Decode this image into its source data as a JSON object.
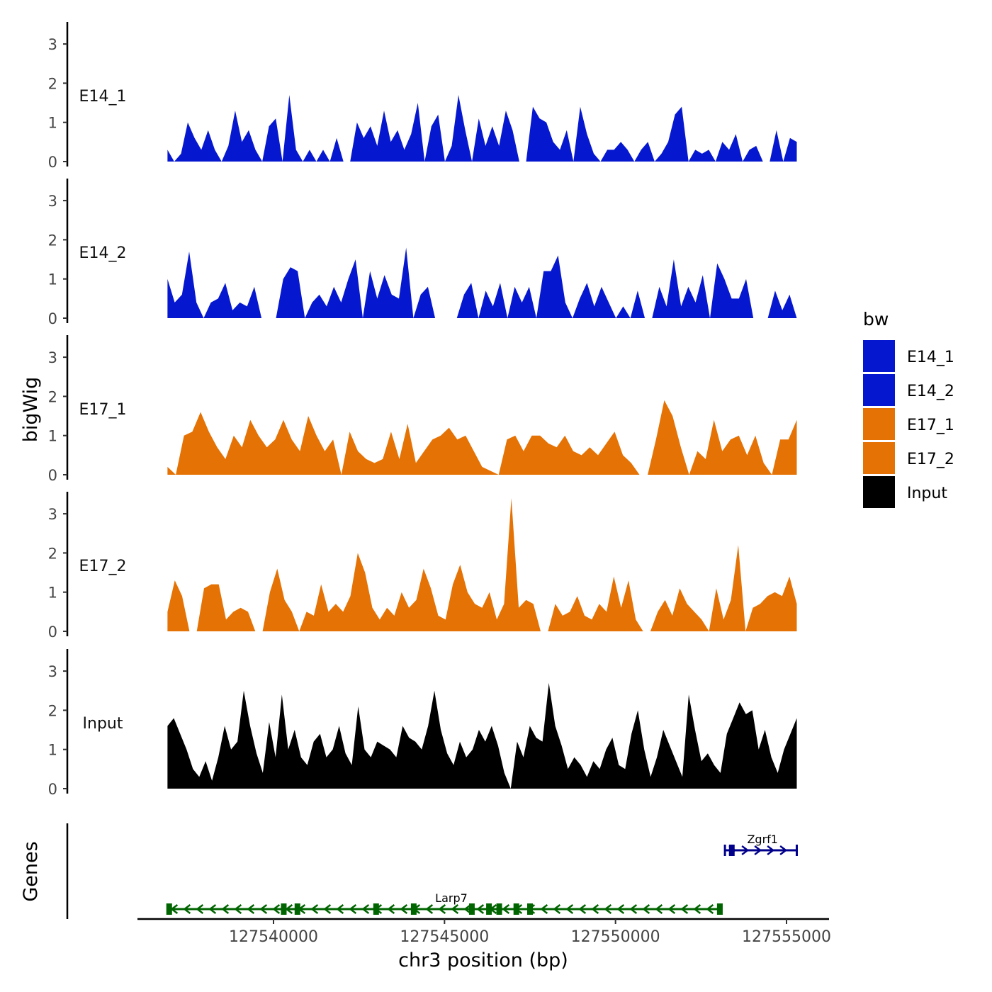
{
  "chart_data": {
    "type": "area",
    "ylabel": "bigWig",
    "genes_label": "Genes",
    "xlabel": "chr3 position (bp)",
    "xlim": [
      127535500,
      127555500
    ],
    "x_ticks": [
      127540000,
      127545000,
      127550000,
      127555000
    ],
    "x_tick_labels": [
      "127540000",
      "127545000",
      "127550000",
      "127555000"
    ],
    "ylim": [
      0,
      3.5
    ],
    "y_ticks": [
      0,
      1,
      2,
      3
    ],
    "y_tick_labels": [
      "0",
      "1",
      "2",
      "3"
    ],
    "track_x_range": [
      127536900,
      127555300
    ],
    "legend": {
      "title": "bw",
      "entries": [
        {
          "label": "E14_1",
          "color": "#0618CF"
        },
        {
          "label": "E14_2",
          "color": "#0618CF"
        },
        {
          "label": "E17_1",
          "color": "#E57204"
        },
        {
          "label": "E17_2",
          "color": "#E57204"
        },
        {
          "label": "Input",
          "color": "#000000"
        }
      ]
    },
    "series": [
      {
        "name": "E14_1",
        "color": "#0618CF",
        "values": [
          0.3,
          0.0,
          0.2,
          1.0,
          0.6,
          0.3,
          0.8,
          0.3,
          0.0,
          0.4,
          1.3,
          0.5,
          0.8,
          0.3,
          0.0,
          0.9,
          1.1,
          0.0,
          1.7,
          0.3,
          0.0,
          0.3,
          0.0,
          0.3,
          0.0,
          0.6,
          0.0,
          0.0,
          1.0,
          0.6,
          0.9,
          0.4,
          1.3,
          0.5,
          0.8,
          0.3,
          0.7,
          1.5,
          0.0,
          0.9,
          1.2,
          0.0,
          0.4,
          1.7,
          0.8,
          0.0,
          1.1,
          0.4,
          0.9,
          0.4,
          1.3,
          0.8,
          0.0,
          0.0,
          1.4,
          1.1,
          1.0,
          0.5,
          0.3,
          0.8,
          0.0,
          1.4,
          0.7,
          0.2,
          0.0,
          0.3,
          0.3,
          0.5,
          0.3,
          0.0,
          0.3,
          0.5,
          0.0,
          0.2,
          0.5,
          1.2,
          1.4,
          0.0,
          0.3,
          0.2,
          0.3,
          0.0,
          0.5,
          0.3,
          0.7,
          0.0,
          0.3,
          0.4,
          0.0,
          0.0,
          0.8,
          0.0,
          0.6,
          0.5
        ]
      },
      {
        "name": "E14_2",
        "color": "#0618CF",
        "values": [
          1.0,
          0.4,
          0.6,
          1.7,
          0.4,
          0.0,
          0.4,
          0.5,
          0.9,
          0.2,
          0.4,
          0.3,
          0.8,
          0.0,
          0.0,
          0.0,
          1.0,
          1.3,
          1.2,
          0.0,
          0.4,
          0.6,
          0.3,
          0.8,
          0.4,
          1.0,
          1.5,
          0.0,
          1.2,
          0.5,
          1.1,
          0.6,
          0.5,
          1.8,
          0.0,
          0.6,
          0.8,
          0.0,
          0.0,
          0.0,
          0.0,
          0.6,
          0.9,
          0.0,
          0.7,
          0.3,
          0.9,
          0.0,
          0.8,
          0.4,
          0.8,
          0.0,
          1.2,
          1.2,
          1.6,
          0.4,
          0.0,
          0.5,
          0.9,
          0.3,
          0.8,
          0.4,
          0.0,
          0.3,
          0.0,
          0.7,
          0.0,
          0.0,
          0.8,
          0.3,
          1.5,
          0.3,
          0.8,
          0.4,
          1.1,
          0.0,
          1.4,
          1.0,
          0.5,
          0.5,
          1.0,
          0.0,
          0.0,
          0.0,
          0.7,
          0.2,
          0.6,
          0.0
        ]
      },
      {
        "name": "E17_1",
        "color": "#E57204",
        "values": [
          0.2,
          0.0,
          1.0,
          1.1,
          1.6,
          1.1,
          0.7,
          0.4,
          1.0,
          0.7,
          1.4,
          1.0,
          0.7,
          0.9,
          1.4,
          0.9,
          0.6,
          1.5,
          1.0,
          0.6,
          0.9,
          0.0,
          1.1,
          0.6,
          0.4,
          0.3,
          0.4,
          1.1,
          0.4,
          1.3,
          0.3,
          0.6,
          0.9,
          1.0,
          1.2,
          0.9,
          1.0,
          0.6,
          0.2,
          0.1,
          0.0,
          0.9,
          1.0,
          0.6,
          1.0,
          1.0,
          0.8,
          0.7,
          1.0,
          0.6,
          0.5,
          0.7,
          0.5,
          0.8,
          1.1,
          0.5,
          0.3,
          0.0,
          0.0,
          0.9,
          1.9,
          1.5,
          0.7,
          0.0,
          0.6,
          0.4,
          1.4,
          0.6,
          0.9,
          1.0,
          0.5,
          1.0,
          0.3,
          0.0,
          0.9,
          0.9,
          1.4
        ]
      },
      {
        "name": "E17_2",
        "color": "#E57204",
        "values": [
          0.5,
          1.3,
          0.9,
          0.0,
          0.0,
          1.1,
          1.2,
          1.2,
          0.3,
          0.5,
          0.6,
          0.5,
          0.0,
          0.0,
          1.0,
          1.6,
          0.8,
          0.5,
          0.0,
          0.5,
          0.4,
          1.2,
          0.5,
          0.7,
          0.5,
          0.9,
          2.0,
          1.5,
          0.6,
          0.3,
          0.6,
          0.4,
          1.0,
          0.6,
          0.8,
          1.6,
          1.1,
          0.4,
          0.3,
          1.2,
          1.7,
          1.0,
          0.7,
          0.6,
          1.0,
          0.3,
          0.7,
          3.4,
          0.6,
          0.8,
          0.7,
          0.0,
          0.0,
          0.7,
          0.4,
          0.5,
          0.9,
          0.4,
          0.3,
          0.7,
          0.5,
          1.4,
          0.6,
          1.3,
          0.3,
          0.0,
          0.0,
          0.5,
          0.8,
          0.4,
          1.1,
          0.7,
          0.5,
          0.3,
          0.0,
          1.1,
          0.3,
          0.8,
          2.2,
          0.0,
          0.6,
          0.7,
          0.9,
          1.0,
          0.9,
          1.4,
          0.7
        ]
      },
      {
        "name": "Input",
        "color": "#000000",
        "values": [
          1.6,
          1.8,
          1.4,
          1.0,
          0.5,
          0.3,
          0.7,
          0.2,
          0.8,
          1.6,
          1.0,
          1.2,
          2.5,
          1.6,
          0.9,
          0.4,
          1.7,
          0.8,
          2.4,
          1.0,
          1.5,
          0.8,
          0.6,
          1.2,
          1.4,
          0.8,
          1.0,
          1.6,
          0.9,
          0.6,
          2.1,
          1.0,
          0.8,
          1.2,
          1.1,
          1.0,
          0.8,
          1.6,
          1.3,
          1.2,
          1.0,
          1.6,
          2.5,
          1.5,
          0.9,
          0.6,
          1.2,
          0.8,
          1.0,
          1.5,
          1.2,
          1.6,
          1.1,
          0.4,
          0.0,
          1.2,
          0.8,
          1.6,
          1.3,
          1.2,
          2.7,
          1.6,
          1.1,
          0.5,
          0.8,
          0.6,
          0.3,
          0.7,
          0.5,
          1.0,
          1.3,
          0.6,
          0.5,
          1.4,
          2.0,
          1.0,
          0.3,
          0.8,
          1.5,
          1.1,
          0.7,
          0.3,
          2.4,
          1.5,
          0.7,
          0.9,
          0.6,
          0.4,
          1.4,
          1.8,
          2.2,
          1.9,
          2.0,
          1.0,
          1.5,
          0.8,
          0.4,
          1.0,
          1.4,
          1.8
        ]
      }
    ],
    "genes": [
      {
        "name": "Larp7",
        "color": "#006400",
        "start": 127536900,
        "end": 127553100,
        "strand": "-",
        "exons": [
          127536950,
          127540300,
          127540700,
          127543000,
          127544100,
          127545800,
          127546300,
          127546600,
          127547100,
          127547500,
          127553050
        ],
        "label_x": 127545200
      },
      {
        "name": "Zgrf1",
        "color": "#00008B",
        "start": 127553200,
        "end": 127555300,
        "strand": "+",
        "exons": [
          127553400
        ],
        "label_x": 127554300
      }
    ]
  }
}
